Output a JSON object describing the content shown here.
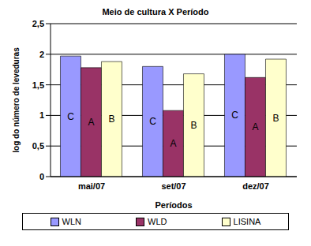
{
  "chart_data": {
    "type": "bar",
    "title": "Meio de cultura X Período",
    "x_label": "Períodos",
    "y_label": "log do número de leveduras",
    "categories": [
      "mai/07",
      "set/07",
      "dez/07"
    ],
    "series": [
      {
        "name": "WLN",
        "color": "#9999ff",
        "values": [
          1.97,
          1.8,
          2.0
        ],
        "annotations": [
          "C",
          "C",
          "C"
        ]
      },
      {
        "name": "WLD",
        "color": "#993366",
        "values": [
          1.78,
          1.08,
          1.62
        ],
        "annotations": [
          "A",
          "A",
          "A"
        ]
      },
      {
        "name": "LISINA",
        "color": "#ffffcc",
        "values": [
          1.88,
          1.68,
          1.92
        ],
        "annotations": [
          "B",
          "B",
          "B"
        ]
      }
    ],
    "ylim": [
      0,
      2.5
    ],
    "yticks": [
      0,
      {
        "value": 0.5,
        "label": "0,5"
      },
      1,
      {
        "value": 1.5,
        "label": "1,5"
      },
      2,
      {
        "value": 2.5,
        "label": "2,5"
      }
    ],
    "grid": true,
    "legend": "bottom"
  }
}
